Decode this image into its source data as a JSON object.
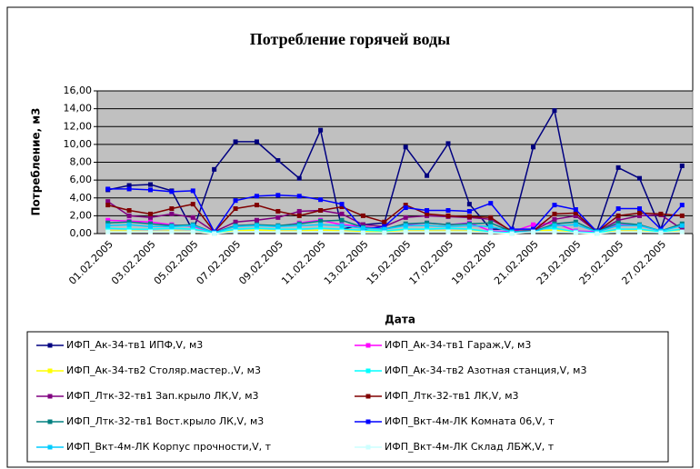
{
  "chart_data": {
    "type": "line",
    "title": "Потребление горячей воды",
    "y_label": "Потребление, м3",
    "x_label": "Дата",
    "categories": [
      "01.02.2005",
      null,
      "03.02.2005",
      null,
      "05.02.2005",
      null,
      "07.02.2005",
      null,
      "09.02.2005",
      null,
      "11.02.2005",
      null,
      "13.02.2005",
      null,
      "15.02.2005",
      null,
      "17.02.2005",
      null,
      "19.02.2005",
      null,
      "21.02.2005",
      null,
      "23.02.2005",
      null,
      "25.02.2005",
      null,
      "27.02.2005",
      null
    ],
    "ylim": [
      0,
      16
    ],
    "yticks": [
      {
        "value": 0,
        "label": "0,00"
      },
      {
        "value": 2,
        "label": "2,00"
      },
      {
        "value": 4,
        "label": "4,00"
      },
      {
        "value": 6,
        "label": "6,00"
      },
      {
        "value": 8,
        "label": "8,00"
      },
      {
        "value": 10,
        "label": "10,00"
      },
      {
        "value": 12,
        "label": "12,00"
      },
      {
        "value": 14,
        "label": "14,00"
      },
      {
        "value": 16,
        "label": "16,00"
      }
    ],
    "grid": true,
    "legend": "bottom",
    "series": [
      {
        "name": "ИФП_Ак-34-тв1 ИПФ,V, м3",
        "color": "#000080",
        "values": [
          4.9,
          5.4,
          5.5,
          4.8,
          0.3,
          7.2,
          10.3,
          10.3,
          8.2,
          6.2,
          11.6,
          0.5,
          1.0,
          1.2,
          9.7,
          6.5,
          10.1,
          3.3,
          0.5,
          0.5,
          9.7,
          13.8,
          2.0,
          0.3,
          7.4,
          6.2,
          0.5,
          7.6
        ]
      },
      {
        "name": "ИФП_Ак-34-тв1 Гараж,V, м3",
        "color": "#ff00ff",
        "values": [
          1.5,
          1.4,
          1.3,
          1.0,
          0.8,
          0.1,
          0.9,
          1.0,
          0.8,
          1.2,
          1.5,
          1.0,
          0.8,
          0.5,
          1.0,
          1.2,
          1.0,
          1.2,
          0.3,
          0.2,
          1.0,
          1.2,
          0.3,
          0.2,
          1.0,
          0.9,
          0.3,
          1.0
        ]
      },
      {
        "name": "ИФП_Ак-34-тв2 Столяр.мастер.,V, м3",
        "color": "#ffff00",
        "values": [
          0.3,
          0.3,
          0.2,
          0.3,
          0.2,
          0.0,
          0.3,
          0.4,
          0.3,
          0.3,
          0.4,
          0.3,
          0.2,
          0.2,
          0.3,
          0.3,
          0.3,
          0.3,
          0.1,
          0.0,
          0.3,
          0.4,
          0.1,
          0.0,
          0.3,
          0.3,
          0.1,
          0.3
        ]
      },
      {
        "name": "ИФП_Ак-34-тв2 Азотная станция,V, м3",
        "color": "#00ffff",
        "values": [
          0.6,
          0.5,
          0.5,
          0.6,
          0.5,
          0.1,
          0.5,
          0.6,
          0.5,
          0.5,
          0.6,
          0.5,
          0.4,
          0.3,
          0.5,
          0.5,
          0.6,
          0.5,
          0.2,
          0.1,
          0.5,
          0.6,
          0.2,
          0.1,
          0.5,
          0.5,
          0.2,
          0.5
        ]
      },
      {
        "name": "ИФП_Лтк-32-тв1 Зап.крыло ЛК,V, м3",
        "color": "#800080",
        "values": [
          3.6,
          2.0,
          1.8,
          2.2,
          1.8,
          0.2,
          1.3,
          1.5,
          1.8,
          2.5,
          2.6,
          2.2,
          1.0,
          0.8,
          1.8,
          2.0,
          1.9,
          1.8,
          1.6,
          0.3,
          0.3,
          1.6,
          2.0,
          0.2,
          1.5,
          2.0,
          2.1,
          0.5
        ]
      },
      {
        "name": "ИФП_Лтк-32-тв1 ЛК,V, м3",
        "color": "#800000",
        "values": [
          3.2,
          2.6,
          2.2,
          2.8,
          3.3,
          0.2,
          2.8,
          3.2,
          2.5,
          2.0,
          2.6,
          3.0,
          2.0,
          1.3,
          3.2,
          2.2,
          2.0,
          1.9,
          1.8,
          0.2,
          0.3,
          2.2,
          2.3,
          0.2,
          2.0,
          2.3,
          2.2,
          2.0
        ]
      },
      {
        "name": "ИФП_Лтк-32-тв1 Вост.крыло ЛК,V, м3",
        "color": "#008080",
        "values": [
          1.2,
          1.3,
          1.1,
          0.9,
          1.0,
          0.1,
          0.9,
          1.0,
          0.9,
          1.1,
          1.4,
          1.5,
          0.7,
          0.5,
          1.1,
          1.2,
          1.0,
          1.1,
          1.2,
          0.2,
          0.2,
          1.1,
          1.3,
          0.2,
          1.2,
          1.0,
          0.3,
          1.1
        ]
      },
      {
        "name": "ИФП_Вкт-4м-ЛК Комната 06,V, т",
        "color": "#0000ff",
        "values": [
          5.0,
          5.0,
          4.9,
          4.7,
          4.8,
          0.2,
          3.7,
          4.2,
          4.3,
          4.2,
          3.8,
          3.3,
          0.5,
          0.8,
          2.9,
          2.6,
          2.6,
          2.5,
          3.4,
          0.5,
          0.5,
          3.2,
          2.7,
          0.2,
          2.8,
          2.8,
          0.5,
          3.2
        ]
      },
      {
        "name": "ИФП_Вкт-4м-ЛК Корпус прочности,V, т",
        "color": "#00ccff",
        "values": [
          0.9,
          1.0,
          0.8,
          0.8,
          0.9,
          0.1,
          0.8,
          0.9,
          0.8,
          0.9,
          1.0,
          0.9,
          0.6,
          0.5,
          0.9,
          0.9,
          0.8,
          0.9,
          0.8,
          0.2,
          0.2,
          0.9,
          1.0,
          0.2,
          0.9,
          0.9,
          0.3,
          0.9
        ]
      },
      {
        "name": "ИФП_Вкт-4м-ЛК Склад ЛБЖ,V, т",
        "color": "#ccffff",
        "values": [
          0.2,
          0.2,
          0.2,
          0.2,
          0.2,
          0.0,
          0.2,
          0.2,
          0.2,
          0.2,
          0.2,
          0.2,
          0.1,
          0.1,
          0.2,
          0.2,
          0.2,
          0.2,
          0.1,
          0.0,
          0.2,
          0.2,
          0.1,
          0.0,
          0.2,
          0.2,
          0.1,
          0.2
        ]
      }
    ]
  }
}
